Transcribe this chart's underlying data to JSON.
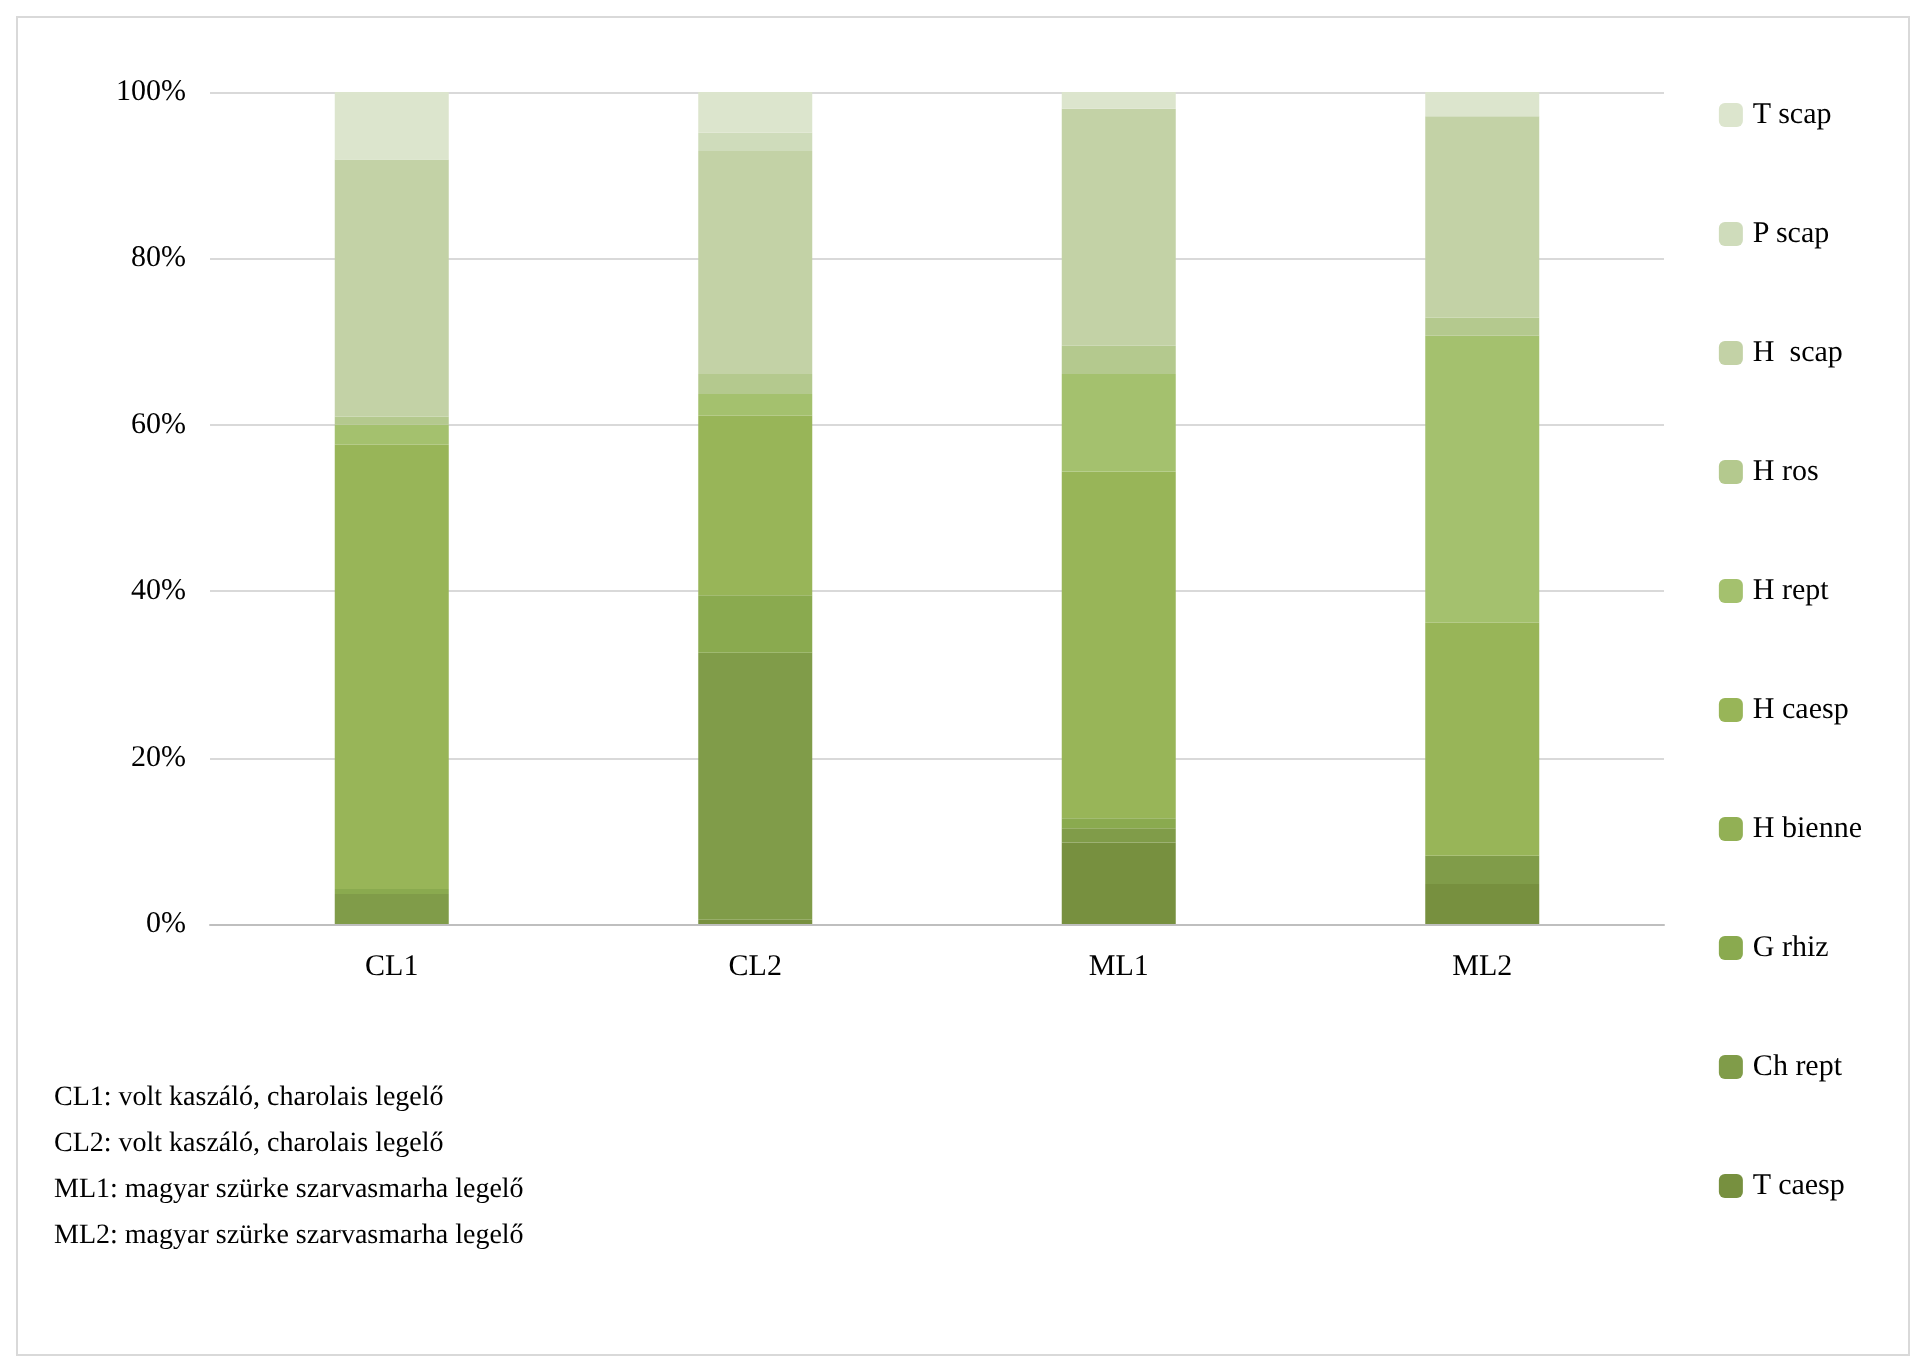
{
  "chart_data": {
    "type": "bar",
    "stacked": true,
    "categories": [
      "CL1",
      "CL2",
      "ML1",
      "ML2"
    ],
    "series": [
      {
        "name": "T caesp",
        "color": "#77903f",
        "values": [
          0,
          0.5,
          9.8,
          4.8
        ]
      },
      {
        "name": "Ch rept",
        "color": "#809c49",
        "values": [
          3.6,
          32.1,
          1.7,
          3.4
        ]
      },
      {
        "name": "G rhiz",
        "color": "#8aaa4f",
        "values": [
          0.6,
          6.9,
          1.2,
          0
        ]
      },
      {
        "name": "H bienne",
        "color": "#92b055",
        "values": [
          0,
          0,
          0,
          0
        ]
      },
      {
        "name": "H caesp",
        "color": "#98b558",
        "values": [
          53.4,
          21.6,
          41.7,
          28.0
        ]
      },
      {
        "name": "H rept",
        "color": "#a4c16e",
        "values": [
          2.4,
          2.6,
          11.7,
          34.5
        ]
      },
      {
        "name": "H ros",
        "color": "#b4c98e",
        "values": [
          1.0,
          2.4,
          3.4,
          2.2
        ]
      },
      {
        "name": "H  scap",
        "color": "#c3d2a6",
        "values": [
          30.9,
          26.8,
          28.5,
          24.2
        ]
      },
      {
        "name": "P scap",
        "color": "#cfdcbb",
        "values": [
          0,
          2.2,
          0,
          0
        ]
      },
      {
        "name": "T scap",
        "color": "#dce5cd",
        "values": [
          8.1,
          4.9,
          2.0,
          2.9
        ]
      }
    ],
    "ylim": [
      0,
      100
    ],
    "yticks": [
      {
        "value": 0,
        "label": "0%"
      },
      {
        "value": 20,
        "label": "20%"
      },
      {
        "value": 40,
        "label": "40%"
      },
      {
        "value": 60,
        "label": "60%"
      },
      {
        "value": 80,
        "label": "80%"
      },
      {
        "value": 100,
        "label": "100%"
      }
    ],
    "grid": "y",
    "legend": "right",
    "annotations": [
      "CL1: volt kaszáló, charolais legelő",
      "CL2: volt kaszáló, charolais legelő",
      "ML1: magyar szürke szarvasmarha legelő",
      "ML2: magyar szürke szarvasmarha legelő"
    ]
  }
}
